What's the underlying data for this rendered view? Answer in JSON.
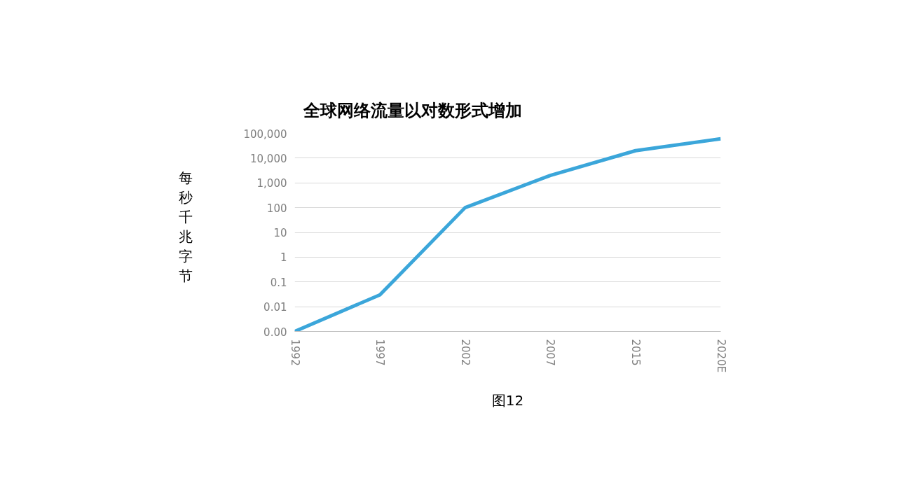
{
  "chart_data": {
    "type": "line",
    "title": "全球网络流量以对数形式增加",
    "ylabel": "每秒千兆字节",
    "categories": [
      "1992",
      "1997",
      "2002",
      "2007",
      "2015",
      "2020E"
    ],
    "series": [
      {
        "color": "#3ba6da",
        "values": [
          0.001,
          0.03,
          100,
          2000,
          20000,
          60000
        ]
      }
    ],
    "log": "y",
    "ylim": [
      0.001,
      100000
    ],
    "yticks": [
      {
        "value": 0.001,
        "label": "0.00"
      },
      0.01,
      0.1,
      1,
      10,
      100,
      {
        "value": 1000,
        "label": "1,000"
      },
      {
        "value": 10000,
        "label": "10,000"
      },
      {
        "value": 100000,
        "label": "100,000"
      }
    ],
    "grid": "y",
    "marker": "none",
    "line_style": "solid",
    "annotations": [
      "图12"
    ]
  }
}
